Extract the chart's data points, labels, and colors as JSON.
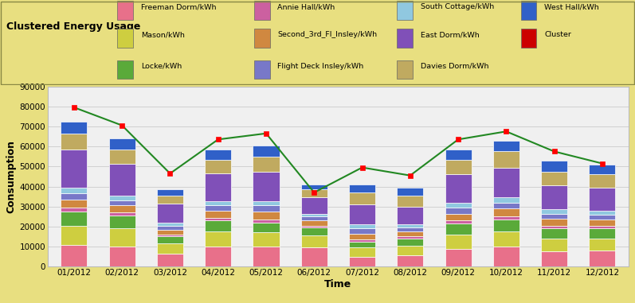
{
  "months": [
    "01/2012",
    "02/2012",
    "03/2012",
    "04/2012",
    "05/2012",
    "06/2012",
    "07/2012",
    "08/2012",
    "09/2012",
    "10/2012",
    "11/2012",
    "12/2012"
  ],
  "series_order": [
    "Freeman Dorm/kWh",
    "Mason/kWh",
    "Locke/kWh",
    "Annie Hall/kWh",
    "Second_3rd_Fl_Insley/kWh",
    "Flight Deck Insley/kWh",
    "South Cottage/kWh",
    "East Dorm/kWh",
    "Davies Dorm/kWh",
    "West Hall/kWh"
  ],
  "series": {
    "Freeman Dorm/kWh": [
      11000,
      10000,
      6500,
      10000,
      10000,
      9500,
      5000,
      5500,
      9000,
      10000,
      7500,
      8000
    ],
    "Mason/kWh": [
      9500,
      9000,
      5000,
      7500,
      7000,
      6000,
      4500,
      5000,
      7000,
      7500,
      6500,
      6000
    ],
    "Locke/kWh": [
      7000,
      6500,
      3500,
      5500,
      5000,
      4000,
      3000,
      3500,
      5500,
      6000,
      5000,
      5000
    ],
    "Annie Hall/kWh": [
      2000,
      1500,
      1000,
      1500,
      1500,
      1000,
      1000,
      1000,
      1500,
      1500,
      1500,
      1500
    ],
    "Second_3rd_Fl_Insley/kWh": [
      4000,
      3500,
      2500,
      3500,
      4000,
      2500,
      3000,
      2500,
      3500,
      4000,
      3500,
      3000
    ],
    "Flight Deck Insley/kWh": [
      3000,
      2500,
      2000,
      2500,
      3000,
      2000,
      2500,
      2000,
      3000,
      3000,
      2500,
      2500
    ],
    "South Cottage/kWh": [
      3000,
      2500,
      1500,
      2000,
      2000,
      1500,
      2000,
      1500,
      2500,
      2500,
      2000,
      2000
    ],
    "East Dorm/kWh": [
      19000,
      16000,
      9500,
      14000,
      15000,
      8000,
      10000,
      9000,
      14000,
      15000,
      12000,
      11500
    ],
    "Davies Dorm/kWh": [
      8000,
      7000,
      4000,
      7000,
      7500,
      4000,
      6000,
      5500,
      7500,
      8000,
      7000,
      6500
    ],
    "West Hall/kWh": [
      6000,
      5500,
      3000,
      5000,
      5500,
      2500,
      4000,
      4000,
      5000,
      5500,
      5500,
      5000
    ]
  },
  "cluster_line": [
    79500,
    70500,
    46500,
    63500,
    66500,
    37000,
    49500,
    45500,
    63500,
    67500,
    57500,
    51500
  ],
  "colors": {
    "Freeman Dorm/kWh": "#e8708a",
    "Mason/kWh": "#cece40",
    "Locke/kWh": "#5aaa3a",
    "Annie Hall/kWh": "#cc60a0",
    "Second_3rd_Fl_Insley/kWh": "#d08840",
    "Flight Deck Insley/kWh": "#7878c8",
    "South Cottage/kWh": "#90c8e0",
    "East Dorm/kWh": "#8050b8",
    "Davies Dorm/kWh": "#c0aa60",
    "West Hall/kWh": "#3060c8"
  },
  "legend_items": [
    [
      "Freeman Dorm/kWh",
      "#e8708a"
    ],
    [
      "Annie Hall/kWh",
      "#cc60a0"
    ],
    [
      "South Cottage/kWh",
      "#90c8e0"
    ],
    [
      "West Hall/kWh",
      "#3060c8"
    ],
    [
      "Mason/kWh",
      "#cece40"
    ],
    [
      "Second_3rd_Fl_Insley/kWh",
      "#d08840"
    ],
    [
      "East Dorm/kWh",
      "#8050b8"
    ],
    [
      "Cluster",
      "#cc0000"
    ],
    [
      "Locke/kWh",
      "#5aaa3a"
    ],
    [
      "Flight Deck Insley/kWh",
      "#7878c8"
    ],
    [
      "Davies Dorm/kWh",
      "#c0aa60"
    ]
  ],
  "title": "Clustered Energy Usage",
  "xlabel": "Time",
  "ylabel": "Consumption",
  "ylim": [
    0,
    90000
  ],
  "yticks": [
    0,
    10000,
    20000,
    30000,
    40000,
    50000,
    60000,
    70000,
    80000,
    90000
  ],
  "plot_bg": "#f0f0f0",
  "header_bg_top": "#e8df80",
  "header_bg_bot": "#b8b040",
  "bar_width": 0.55,
  "grid_color": "#cccccc"
}
